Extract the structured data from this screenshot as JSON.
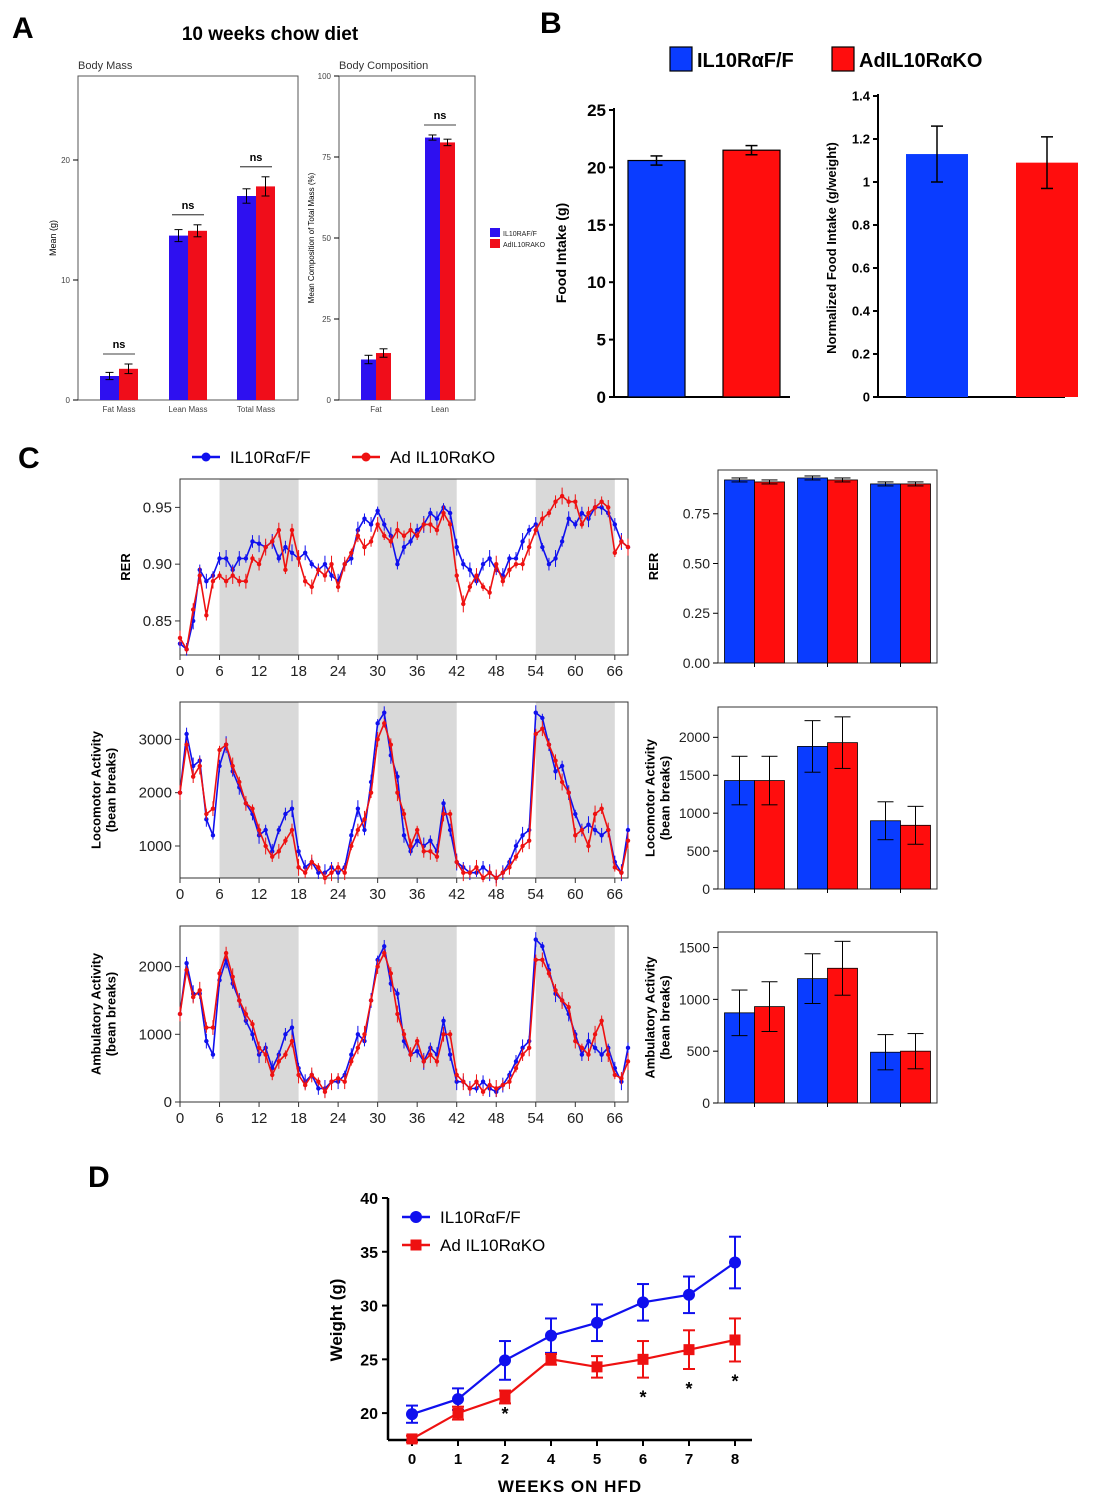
{
  "colors": {
    "blue": "#1010ee",
    "red": "#ee1111",
    "blueSolid": "#0a3cff",
    "redSolid": "#ff0d0d",
    "shade": "#d9d9d9"
  },
  "panels": {
    "A": "A",
    "B": "B",
    "C": "C",
    "D": "D"
  },
  "chart_data": [
    {
      "id": "A1",
      "type": "bar",
      "supertitle": "10 weeks chow diet",
      "title": "Body Mass",
      "ylabel": "Mean (g)",
      "ylim": [
        0,
        27
      ],
      "yticks": [
        0,
        10,
        20
      ],
      "categories": [
        "Fat Mass",
        "Lean Mass",
        "Total Mass"
      ],
      "series": [
        {
          "name": "IL10RAF/F",
          "values": [
            2.0,
            13.7,
            17.0
          ],
          "errors": [
            0.3,
            0.5,
            0.6
          ]
        },
        {
          "name": "AdIL10RAKO",
          "values": [
            2.6,
            14.1,
            17.8
          ],
          "errors": [
            0.4,
            0.5,
            0.8
          ]
        }
      ],
      "annotations": [
        "ns",
        "ns",
        "ns"
      ]
    },
    {
      "id": "A2",
      "type": "bar",
      "title": "Body Composition",
      "ylabel": "Mean Composition of Total Mass (%)",
      "ylim": [
        0,
        100
      ],
      "yticks": [
        0,
        25,
        50,
        75,
        100
      ],
      "categories": [
        "Fat",
        "Lean"
      ],
      "series": [
        {
          "name": "IL10RAF/F",
          "values": [
            12.5,
            81.0
          ],
          "errors": [
            1.3,
            0.8
          ]
        },
        {
          "name": "AdIL10RAKO",
          "values": [
            14.5,
            79.5
          ],
          "errors": [
            1.3,
            1.0
          ]
        }
      ],
      "annotations": [
        "",
        "ns"
      ],
      "legend": [
        "IL10RAF/F",
        "AdIL10RAKO"
      ]
    },
    {
      "id": "B1",
      "type": "bar",
      "legend": [
        "IL10RαF/F",
        "AdIL10RαKO"
      ],
      "ylabel": "Food Intake (g)",
      "ylim": [
        0,
        25
      ],
      "yticks": [
        0,
        5,
        10,
        15,
        20,
        25
      ],
      "series": [
        {
          "name": "IL10RαF/F",
          "values": [
            20.6
          ],
          "errors": [
            0.4
          ]
        },
        {
          "name": "AdIL10RαKO",
          "values": [
            21.5
          ],
          "errors": [
            0.4
          ]
        }
      ]
    },
    {
      "id": "B2",
      "type": "bar",
      "ylabel": "Normalized Food Intake (g/weight)",
      "ylim": [
        0,
        1.4
      ],
      "yticks": [
        0,
        0.2,
        0.4,
        0.6,
        0.8,
        1,
        1.2,
        1.4
      ],
      "yticklabels": [
        "0",
        "0.2",
        "0.4",
        "0.6",
        "0.8",
        "1",
        "1.2",
        "1.4"
      ],
      "series": [
        {
          "name": "IL10RαF/F",
          "values": [
            1.13
          ],
          "errors": [
            0.13
          ]
        },
        {
          "name": "AdIL10RαKO",
          "values": [
            1.09
          ],
          "errors": [
            0.12
          ]
        }
      ]
    },
    {
      "id": "C1",
      "type": "line",
      "legend": [
        "IL10RαF/F",
        "Ad IL10RαKO"
      ],
      "ylabel": "RER",
      "xlim": [
        0,
        68
      ],
      "ylim": [
        0.82,
        0.975
      ],
      "xticks": [
        0,
        6,
        12,
        18,
        24,
        30,
        36,
        42,
        48,
        54,
        60,
        66
      ],
      "yticks": [
        0.85,
        0.9,
        0.95
      ],
      "yticklabels": [
        "0.85",
        "0.90",
        "0.95"
      ],
      "dark_periods": [
        [
          6,
          18
        ],
        [
          30,
          42
        ],
        [
          54,
          66
        ]
      ],
      "x": [
        0,
        1,
        2,
        3,
        4,
        5,
        6,
        7,
        8,
        9,
        10,
        11,
        12,
        13,
        14,
        15,
        16,
        17,
        18,
        19,
        20,
        21,
        22,
        23,
        24,
        25,
        26,
        27,
        28,
        29,
        30,
        31,
        32,
        33,
        34,
        35,
        36,
        37,
        38,
        39,
        40,
        41,
        42,
        43,
        44,
        45,
        46,
        47,
        48,
        49,
        50,
        51,
        52,
        53,
        54,
        55,
        56,
        57,
        58,
        59,
        60,
        61,
        62,
        63,
        64,
        65,
        66,
        67,
        68
      ],
      "series": [
        {
          "name": "IL10RαF/F",
          "values": [
            0.83,
            0.825,
            0.85,
            0.895,
            0.885,
            0.89,
            0.905,
            0.905,
            0.895,
            0.905,
            0.905,
            0.92,
            0.918,
            0.915,
            0.92,
            0.905,
            0.915,
            0.91,
            0.905,
            0.91,
            0.9,
            0.895,
            0.9,
            0.89,
            0.885,
            0.9,
            0.905,
            0.93,
            0.94,
            0.935,
            0.947,
            0.935,
            0.925,
            0.9,
            0.915,
            0.92,
            0.93,
            0.935,
            0.945,
            0.94,
            0.95,
            0.945,
            0.915,
            0.9,
            0.895,
            0.885,
            0.9,
            0.905,
            0.895,
            0.89,
            0.905,
            0.905,
            0.92,
            0.93,
            0.935,
            0.915,
            0.9,
            0.905,
            0.92,
            0.94,
            0.935,
            0.945,
            0.94,
            0.95,
            0.95,
            0.945,
            0.935,
            0.92,
            0.915
          ]
        },
        {
          "name": "Ad IL10RαKO",
          "values": [
            0.835,
            0.825,
            0.86,
            0.89,
            0.855,
            0.885,
            0.89,
            0.885,
            0.89,
            0.885,
            0.885,
            0.905,
            0.9,
            0.915,
            0.92,
            0.93,
            0.895,
            0.93,
            0.905,
            0.885,
            0.88,
            0.895,
            0.89,
            0.9,
            0.88,
            0.9,
            0.91,
            0.925,
            0.915,
            0.92,
            0.935,
            0.925,
            0.92,
            0.93,
            0.925,
            0.93,
            0.925,
            0.935,
            0.935,
            0.93,
            0.945,
            0.935,
            0.89,
            0.865,
            0.88,
            0.89,
            0.88,
            0.875,
            0.9,
            0.885,
            0.895,
            0.9,
            0.9,
            0.915,
            0.93,
            0.94,
            0.945,
            0.955,
            0.96,
            0.955,
            0.955,
            0.935,
            0.945,
            0.95,
            0.955,
            0.95,
            0.91,
            0.92,
            0.915
          ]
        }
      ]
    },
    {
      "id": "C2",
      "type": "line",
      "ylabel": "Locomotor Activity\n(bean breaks)",
      "xlim": [
        0,
        68
      ],
      "ylim": [
        400,
        3700
      ],
      "xticks": [
        0,
        6,
        12,
        18,
        24,
        30,
        36,
        42,
        48,
        54,
        60,
        66
      ],
      "yticks": [
        1000,
        2000,
        3000
      ],
      "dark_periods": [
        [
          6,
          18
        ],
        [
          30,
          42
        ],
        [
          54,
          66
        ]
      ],
      "x": [
        0,
        1,
        2,
        3,
        4,
        5,
        6,
        7,
        8,
        9,
        10,
        11,
        12,
        13,
        14,
        15,
        16,
        17,
        18,
        19,
        20,
        21,
        22,
        23,
        24,
        25,
        26,
        27,
        28,
        29,
        30,
        31,
        32,
        33,
        34,
        35,
        36,
        37,
        38,
        39,
        40,
        41,
        42,
        43,
        44,
        45,
        46,
        47,
        48,
        49,
        50,
        51,
        52,
        53,
        54,
        55,
        56,
        57,
        58,
        59,
        60,
        61,
        62,
        63,
        64,
        65,
        66,
        67,
        68
      ],
      "series": [
        {
          "name": "IL10RαF/F",
          "values": [
            2000,
            3100,
            2500,
            2600,
            1500,
            1200,
            2500,
            2900,
            2400,
            2100,
            1800,
            1600,
            1200,
            1300,
            900,
            1300,
            1600,
            1700,
            900,
            600,
            700,
            500,
            500,
            600,
            500,
            600,
            1200,
            1700,
            1300,
            2200,
            3300,
            3500,
            2700,
            2300,
            1200,
            900,
            1100,
            1000,
            1100,
            900,
            1800,
            1300,
            700,
            600,
            500,
            500,
            600,
            500,
            400,
            500,
            700,
            1000,
            1200,
            1300,
            3500,
            3400,
            2900,
            2400,
            2500,
            2000,
            1600,
            1300,
            1400,
            1300,
            1200,
            1300,
            700,
            500,
            1300
          ]
        },
        {
          "name": "Ad IL10RαKO",
          "values": [
            2000,
            2900,
            2300,
            2500,
            1600,
            1700,
            2800,
            2900,
            2500,
            2200,
            1800,
            1700,
            1300,
            1000,
            800,
            900,
            1100,
            1300,
            600,
            500,
            700,
            600,
            400,
            500,
            600,
            500,
            1000,
            1300,
            1500,
            2000,
            3000,
            3300,
            2900,
            2000,
            1600,
            1000,
            1300,
            900,
            900,
            800,
            1600,
            1600,
            700,
            500,
            500,
            600,
            400,
            500,
            400,
            500,
            600,
            800,
            1000,
            1100,
            3100,
            3200,
            2900,
            2600,
            2200,
            2000,
            1200,
            1300,
            1000,
            1600,
            1700,
            1300,
            600,
            500,
            1100
          ]
        }
      ]
    },
    {
      "id": "C3",
      "type": "line",
      "ylabel": "Ambulatory Activity\n(bean breaks)",
      "xlim": [
        0,
        68
      ],
      "ylim": [
        0,
        2600
      ],
      "xticks": [
        0,
        6,
        12,
        18,
        24,
        30,
        36,
        42,
        48,
        54,
        60,
        66
      ],
      "yticks": [
        0,
        1000,
        2000
      ],
      "dark_periods": [
        [
          6,
          18
        ],
        [
          30,
          42
        ],
        [
          54,
          66
        ]
      ],
      "x": [
        0,
        1,
        2,
        3,
        4,
        5,
        6,
        7,
        8,
        9,
        10,
        11,
        12,
        13,
        14,
        15,
        16,
        17,
        18,
        19,
        20,
        21,
        22,
        23,
        24,
        25,
        26,
        27,
        28,
        29,
        30,
        31,
        32,
        33,
        34,
        35,
        36,
        37,
        38,
        39,
        40,
        41,
        42,
        43,
        44,
        45,
        46,
        47,
        48,
        49,
        50,
        51,
        52,
        53,
        54,
        55,
        56,
        57,
        58,
        59,
        60,
        61,
        62,
        63,
        64,
        65,
        66,
        67,
        68
      ],
      "series": [
        {
          "name": "IL10RαF/F",
          "values": [
            1300,
            2050,
            1600,
            1600,
            900,
            700,
            1800,
            2100,
            1750,
            1500,
            1200,
            1000,
            700,
            800,
            500,
            700,
            1000,
            1100,
            500,
            300,
            400,
            200,
            200,
            300,
            300,
            400,
            700,
            1000,
            900,
            1500,
            2100,
            2300,
            1750,
            1600,
            900,
            700,
            750,
            600,
            800,
            700,
            1200,
            700,
            300,
            300,
            200,
            200,
            300,
            200,
            150,
            250,
            400,
            600,
            800,
            900,
            2400,
            2300,
            1950,
            1600,
            1500,
            1300,
            1000,
            700,
            900,
            800,
            700,
            800,
            500,
            300,
            800
          ]
        },
        {
          "name": "Ad IL10RαKO",
          "values": [
            1300,
            1950,
            1550,
            1650,
            1100,
            1100,
            1900,
            2200,
            1850,
            1500,
            1300,
            1150,
            800,
            700,
            400,
            600,
            700,
            900,
            400,
            250,
            400,
            300,
            150,
            300,
            350,
            300,
            600,
            800,
            1000,
            1500,
            2000,
            2200,
            1900,
            1300,
            1000,
            700,
            900,
            600,
            700,
            600,
            1000,
            1000,
            400,
            300,
            200,
            300,
            150,
            250,
            200,
            250,
            300,
            500,
            700,
            800,
            2100,
            2100,
            1900,
            1650,
            1500,
            1400,
            900,
            800,
            700,
            1000,
            1200,
            700,
            400,
            350,
            600
          ]
        }
      ]
    },
    {
      "id": "C4",
      "type": "bar",
      "ylabel": "RER",
      "ylim": [
        0,
        0.97
      ],
      "yticks": [
        0,
        0.25,
        0.5,
        0.75
      ],
      "yticklabels": [
        "0.00",
        "0.25",
        "0.50",
        "0.75"
      ],
      "groups": 3,
      "series": [
        {
          "name": "IL10RαF/F",
          "values": [
            0.92,
            0.93,
            0.9
          ],
          "errors": [
            0.01,
            0.01,
            0.01
          ]
        },
        {
          "name": "AdIL10RαKO",
          "values": [
            0.91,
            0.92,
            0.9
          ],
          "errors": [
            0.01,
            0.01,
            0.01
          ]
        }
      ]
    },
    {
      "id": "C5",
      "type": "bar",
      "ylabel": "Locomotor Activity\n(bean breaks)",
      "ylim": [
        0,
        2400
      ],
      "yticks": [
        0,
        500,
        1000,
        1500,
        2000
      ],
      "groups": 3,
      "series": [
        {
          "name": "IL10RαF/F",
          "values": [
            1430,
            1880,
            900
          ],
          "errors": [
            320,
            340,
            250
          ]
        },
        {
          "name": "AdIL10RαKO",
          "values": [
            1430,
            1930,
            840
          ],
          "errors": [
            320,
            340,
            250
          ]
        }
      ]
    },
    {
      "id": "C6",
      "type": "bar",
      "ylabel": "Ambulatory Activity\n(bean breaks)",
      "ylim": [
        0,
        1650
      ],
      "yticks": [
        0,
        500,
        1000,
        1500
      ],
      "groups": 3,
      "series": [
        {
          "name": "IL10RαF/F",
          "values": [
            870,
            1200,
            490
          ],
          "errors": [
            220,
            240,
            170
          ]
        },
        {
          "name": "AdIL10RαKO",
          "values": [
            930,
            1300,
            500
          ],
          "errors": [
            240,
            260,
            170
          ]
        }
      ]
    },
    {
      "id": "D",
      "type": "line",
      "legend": [
        "IL10RαF/F",
        "Ad IL10RαKO"
      ],
      "xlabel": "WEEKS ON HFD",
      "ylabel": "Weight (g)",
      "ylim": [
        17.5,
        40
      ],
      "yticks": [
        20,
        25,
        30,
        35,
        40
      ],
      "x": [
        0,
        1,
        2,
        4,
        5,
        6,
        7,
        8
      ],
      "series": [
        {
          "name": "IL10RαF/F",
          "values": [
            19.9,
            21.3,
            24.9,
            27.2,
            28.4,
            30.3,
            31.0,
            34.0
          ],
          "errors": [
            0.8,
            1.0,
            1.8,
            1.6,
            1.7,
            1.7,
            1.7,
            2.4
          ]
        },
        {
          "name": "Ad IL10RαKO",
          "values": [
            17.6,
            20.0,
            21.5,
            25.0,
            24.3,
            25.0,
            25.9,
            26.8
          ],
          "errors": [
            0.3,
            0.6,
            0.6,
            0.5,
            1.0,
            1.7,
            1.8,
            2.0
          ]
        }
      ],
      "significance": [
        "",
        "",
        "*",
        "",
        "",
        "*",
        "*",
        "*"
      ]
    }
  ]
}
